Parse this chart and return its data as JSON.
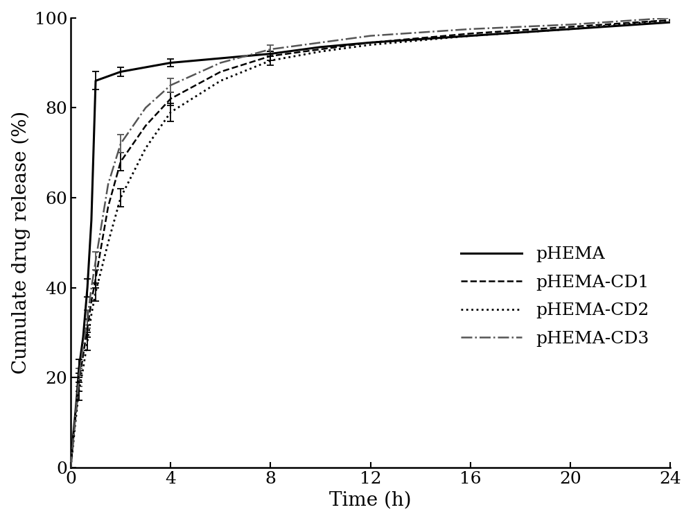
{
  "title": "",
  "xlabel": "Time (h)",
  "ylabel": "Cumulate drug release (%)",
  "xlim": [
    0,
    24
  ],
  "ylim": [
    0,
    100
  ],
  "xticks": [
    0,
    4,
    8,
    12,
    16,
    20,
    24
  ],
  "yticks": [
    0,
    20,
    40,
    60,
    80,
    100
  ],
  "background_color": "#ffffff",
  "series": {
    "pHEMA": {
      "x": [
        0,
        0.1,
        0.17,
        0.25,
        0.33,
        0.5,
        0.67,
        0.83,
        1.0,
        1.5,
        2.0,
        3.0,
        4.0,
        6.0,
        8.0,
        10.0,
        12.0,
        16.0,
        20.0,
        24.0
      ],
      "y": [
        0,
        7,
        11,
        16,
        22,
        29,
        40,
        55,
        86,
        87,
        88,
        89,
        90,
        91,
        92,
        93.5,
        94.5,
        96,
        97.5,
        99
      ],
      "yerr": [
        0,
        1.5,
        1.5,
        2,
        2,
        2,
        2,
        2,
        2,
        1,
        1,
        0.8,
        0.8,
        0.5,
        0.5,
        0.4,
        0.4,
        0.3,
        0.3,
        0.2
      ],
      "linestyle": "solid",
      "color": "#000000",
      "linewidth": 2.2
    },
    "pHEMA-CD1": {
      "x": [
        0,
        0.1,
        0.17,
        0.25,
        0.33,
        0.5,
        0.67,
        0.83,
        1.0,
        1.5,
        2.0,
        3.0,
        4.0,
        6.0,
        8.0,
        10.0,
        12.0,
        16.0,
        20.0,
        24.0
      ],
      "y": [
        0,
        6,
        10,
        14,
        19,
        25,
        31,
        37,
        42,
        58,
        68,
        76,
        82,
        88,
        91.5,
        93,
        94.5,
        96.5,
        98,
        99.5
      ],
      "yerr": [
        0,
        1.5,
        1.5,
        2,
        2,
        2,
        2,
        2,
        2,
        2,
        2,
        2,
        1.5,
        1,
        1,
        0.5,
        0.5,
        0.4,
        0.3,
        0.2
      ],
      "linestyle": "dashed",
      "color": "#000000",
      "linewidth": 1.8
    },
    "pHEMA-CD2": {
      "x": [
        0,
        0.1,
        0.17,
        0.25,
        0.33,
        0.5,
        0.67,
        0.83,
        1.0,
        1.5,
        2.0,
        3.0,
        4.0,
        6.0,
        8.0,
        10.0,
        12.0,
        16.0,
        20.0,
        24.0
      ],
      "y": [
        0,
        5,
        9,
        13,
        17,
        22,
        28,
        34,
        39,
        50,
        60,
        71,
        79,
        86,
        90.5,
        92.5,
        94,
        96,
        97.5,
        99.5
      ],
      "yerr": [
        0,
        1.5,
        1.5,
        2,
        2,
        2,
        2,
        2,
        2,
        2,
        2,
        2,
        2,
        1.5,
        1,
        0.5,
        0.5,
        0.4,
        0.3,
        0.2
      ],
      "linestyle": "dotted",
      "color": "#000000",
      "linewidth": 2.0
    },
    "pHEMA-CD3": {
      "x": [
        0,
        0.1,
        0.17,
        0.25,
        0.33,
        0.5,
        0.67,
        0.83,
        1.0,
        1.5,
        2.0,
        3.0,
        4.0,
        6.0,
        8.0,
        10.0,
        12.0,
        16.0,
        20.0,
        24.0
      ],
      "y": [
        0,
        6,
        10,
        15,
        20,
        27,
        33,
        40,
        46,
        63,
        72,
        80,
        85,
        90,
        93,
        94.5,
        96,
        97.5,
        98.5,
        100
      ],
      "yerr": [
        0,
        1.5,
        1.5,
        2,
        2,
        2,
        2,
        2,
        2,
        2,
        2,
        2,
        1.5,
        1,
        1,
        0.5,
        0.5,
        0.4,
        0.3,
        0.2
      ],
      "linestyle": "dashdot",
      "color": "#555555",
      "linewidth": 1.8
    }
  },
  "fontsize_axis_label": 20,
  "fontsize_tick": 18,
  "fontsize_legend": 18
}
